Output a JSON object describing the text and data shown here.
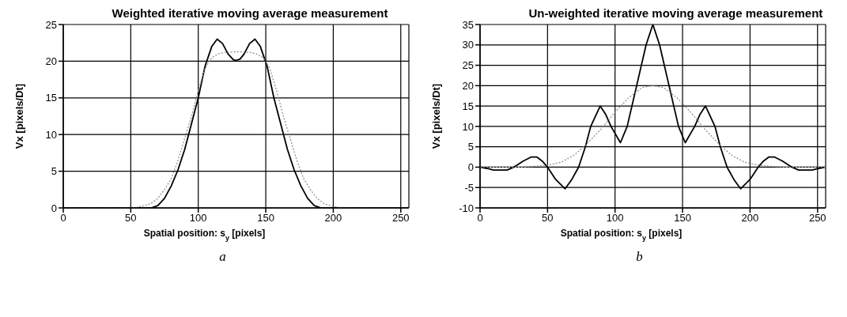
{
  "chart_data": [
    {
      "type": "line",
      "title": "Weighted iterative moving average measurement",
      "xlabel": "Spatial position: s$_{y}$ [pixels]",
      "ylabel": "Vx  [pixels/Dt]",
      "annotations": [
        "a"
      ],
      "xlim": [
        0,
        256
      ],
      "xticks": [
        0,
        50,
        100,
        150,
        200,
        250
      ],
      "ylim": [
        0,
        25
      ],
      "yticks": [
        0,
        5,
        10,
        15,
        20,
        25
      ],
      "grid": true,
      "legend": false,
      "marker": "none",
      "series": [
        {
          "color": "#000000",
          "line_style": "solid",
          "x": [
            0,
            30,
            60,
            65,
            70,
            75,
            80,
            85,
            90,
            95,
            100,
            105,
            110,
            114,
            118,
            122,
            126,
            128,
            131,
            134,
            138,
            142,
            146,
            151,
            156,
            161,
            166,
            171,
            176,
            181,
            186,
            191,
            220,
            256
          ],
          "values": [
            0,
            0,
            0,
            0,
            0.3,
            1.3,
            3,
            5.2,
            8,
            11.5,
            15,
            19.3,
            22,
            23,
            22.4,
            21,
            20.2,
            20.1,
            20.3,
            21,
            22.4,
            23,
            22,
            19.3,
            15,
            11.5,
            8,
            5.2,
            3,
            1.3,
            0.3,
            0,
            0,
            0
          ]
        },
        {
          "color": "#888888",
          "line_style": "dotted",
          "x": [
            0,
            30,
            50,
            55,
            60,
            65,
            70,
            75,
            80,
            85,
            90,
            95,
            100,
            105,
            110,
            115,
            120,
            130,
            138,
            143,
            148,
            153,
            158,
            163,
            168,
            173,
            178,
            183,
            188,
            193,
            198,
            203,
            208,
            230,
            256
          ],
          "values": [
            0,
            0,
            0,
            0.1,
            0.3,
            0.6,
            1.3,
            2.5,
            4,
            6.5,
            9.5,
            12.5,
            16,
            19,
            20.5,
            21,
            21.2,
            21.3,
            21.2,
            21,
            20.5,
            19,
            16,
            12.5,
            9.5,
            6.5,
            4,
            2.5,
            1.3,
            0.6,
            0.3,
            0.1,
            0,
            0,
            0
          ]
        }
      ]
    },
    {
      "type": "line",
      "title": "Un-weighted iterative moving average measurement",
      "xlabel": "Spatial position: s$_{y}$ [pixels]",
      "ylabel": "Vx  [pixels/Dt]",
      "annotations": [
        "b"
      ],
      "xlim": [
        0,
        256
      ],
      "xticks": [
        0,
        50,
        100,
        150,
        200,
        250
      ],
      "ylim": [
        -10,
        35
      ],
      "yticks": [
        -10,
        -5,
        0,
        5,
        10,
        15,
        20,
        25,
        30,
        35
      ],
      "grid": true,
      "legend": false,
      "marker": "none",
      "series": [
        {
          "color": "#000000",
          "line_style": "solid",
          "x": [
            0,
            5,
            10,
            20,
            25,
            32,
            38,
            42,
            46,
            50,
            56,
            63,
            68,
            73,
            78,
            82,
            89,
            93,
            97,
            104,
            109,
            116,
            123,
            128,
            133,
            140,
            147,
            152,
            159,
            163,
            167,
            174,
            178,
            183,
            188,
            193,
            200,
            206,
            210,
            214,
            218,
            224,
            231,
            236,
            246,
            251,
            256
          ],
          "values": [
            0,
            -0.3,
            -0.7,
            -0.7,
            0,
            1.5,
            2.5,
            2.5,
            1.5,
            0,
            -3,
            -5.3,
            -3,
            0,
            5,
            10,
            15,
            13,
            10,
            6,
            10,
            20,
            30,
            35,
            30,
            20,
            10,
            6,
            10,
            13,
            15,
            10,
            5,
            0,
            -3,
            -5.3,
            -3,
            0,
            1.5,
            2.5,
            2.5,
            1.5,
            0,
            -0.7,
            -0.7,
            -0.3,
            0
          ]
        },
        {
          "color": "#888888",
          "line_style": "dotted",
          "x": [
            0,
            30,
            40,
            50,
            60,
            70,
            80,
            90,
            100,
            110,
            120,
            128,
            136,
            146,
            156,
            166,
            176,
            186,
            196,
            206,
            216,
            226,
            256
          ],
          "values": [
            0,
            0,
            0.2,
            0.5,
            1.2,
            3,
            6,
            9.5,
            13.5,
            17,
            19.5,
            20,
            19.5,
            17,
            13.5,
            9.5,
            6,
            3,
            1.2,
            0.5,
            0.2,
            0,
            0
          ]
        }
      ]
    }
  ]
}
